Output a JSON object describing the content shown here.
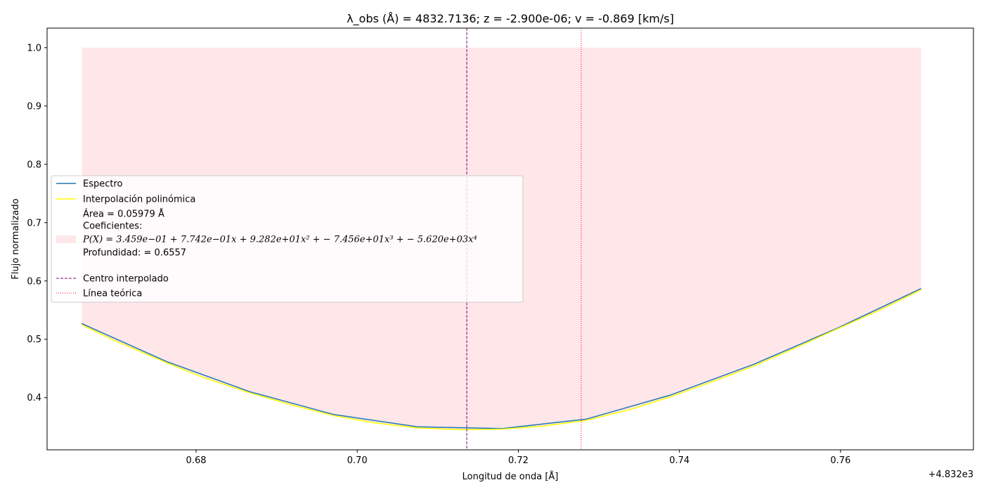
{
  "chart_data": {
    "type": "line",
    "title": "λ_obs (Å) = 4832.7136; z = -2.900e-06; v = -0.869 [km/s]",
    "xlabel": "Longitud de onda [Å]",
    "ylabel": "Flujo normalizado",
    "x_offset_label": "+4.832e3",
    "xlim": [
      0.6615,
      0.7765
    ],
    "ylim": [
      0.3105,
      1.0335
    ],
    "x_ticks": [
      0.68,
      0.7,
      0.72,
      0.74,
      0.76
    ],
    "x_tick_labels": [
      "0.68",
      "0.70",
      "0.72",
      "0.74",
      "0.76"
    ],
    "y_ticks": [
      0.4,
      0.5,
      0.6,
      0.7,
      0.8,
      0.9,
      1.0
    ],
    "y_tick_labels": [
      "0.4",
      "0.5",
      "0.6",
      "0.7",
      "0.8",
      "0.9",
      "1.0"
    ],
    "series": [
      {
        "name": "Espectro",
        "color": "#1f77b4",
        "x": [
          0.6658,
          0.6763,
          0.6867,
          0.6971,
          0.7075,
          0.718,
          0.7284,
          0.7388,
          0.7492,
          0.7596,
          0.77
        ],
        "values": [
          0.527,
          0.462,
          0.41,
          0.371,
          0.35,
          0.347,
          0.363,
          0.404,
          0.457,
          0.519,
          0.587
        ]
      },
      {
        "name": "Interpolación polinómica",
        "color": "#ffff00",
        "x": [
          0.6658,
          0.67,
          0.6763,
          0.681,
          0.6867,
          0.692,
          0.6971,
          0.702,
          0.7075,
          0.713,
          0.718,
          0.723,
          0.7284,
          0.734,
          0.7388,
          0.744,
          0.7492,
          0.755,
          0.7596,
          0.765,
          0.77
        ],
        "values": [
          0.525,
          0.497,
          0.46,
          0.434,
          0.408,
          0.387,
          0.369,
          0.357,
          0.348,
          0.345,
          0.346,
          0.351,
          0.361,
          0.38,
          0.401,
          0.427,
          0.454,
          0.489,
          0.518,
          0.551,
          0.585
        ]
      }
    ],
    "fill": {
      "color": "#ffb6c1",
      "opacity": 0.35,
      "upper": 1.0
    },
    "vlines": [
      {
        "name": "Centro interpolado",
        "x": 0.7136,
        "color": "#800080",
        "style": "dashed"
      },
      {
        "name": "Línea teórica",
        "x": 0.7278,
        "color": "#ff0000",
        "style": "dotted"
      }
    ],
    "legend": {
      "placement": "center-left",
      "entries": {
        "espectro": "Espectro",
        "interp": "Interpolación polinómica",
        "area": "Área = 0.05979 Å",
        "coef_header": "Coeficientes:",
        "poly": " P(X) = 3.459e−01 + 7.742e−01x + 9.282e+01x² + − 7.456e+01x³ + − 5.620e+03x⁴",
        "depth": "Profundidad: = 0.6557",
        "centro": "Centro interpolado",
        "teorica": "Línea teórica"
      }
    }
  }
}
